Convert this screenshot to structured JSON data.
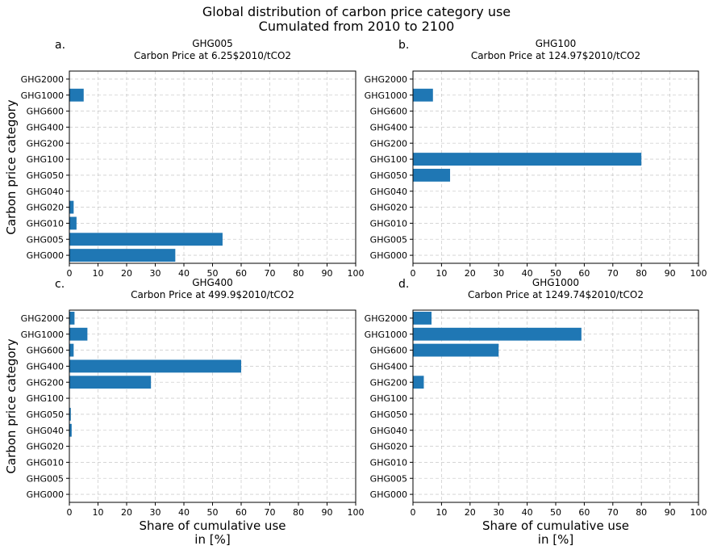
{
  "figure": {
    "title_line1": "Global distribution of carbon price category use",
    "title_line2": "Cumulated from 2010 to 2100"
  },
  "chart_data": [
    {
      "type": "bar",
      "orientation": "horizontal",
      "panel_letter": "a.",
      "title_line1": "GHG005",
      "title_line2": "Carbon Price at 6.25$2010/tCO2",
      "ylabel": "Carbon price category",
      "xlabel_line1": "",
      "xlabel_line2": "",
      "categories": [
        "GHG000",
        "GHG005",
        "GHG010",
        "GHG020",
        "GHG040",
        "GHG050",
        "GHG100",
        "GHG200",
        "GHG400",
        "GHG600",
        "GHG1000",
        "GHG2000"
      ],
      "values": [
        37,
        53.5,
        2.5,
        1.5,
        0,
        0,
        0,
        0,
        0,
        0,
        5,
        0
      ],
      "xlim": [
        0,
        100
      ],
      "xticks": [
        0,
        10,
        20,
        30,
        40,
        50,
        60,
        70,
        80,
        90,
        100
      ],
      "grid": true,
      "bar_color": "#1f77b4"
    },
    {
      "type": "bar",
      "orientation": "horizontal",
      "panel_letter": "b.",
      "title_line1": "GHG100",
      "title_line2": "Carbon Price at 124.97$2010/tCO2",
      "ylabel": "",
      "xlabel_line1": "",
      "xlabel_line2": "",
      "categories": [
        "GHG000",
        "GHG005",
        "GHG010",
        "GHG020",
        "GHG040",
        "GHG050",
        "GHG100",
        "GHG200",
        "GHG400",
        "GHG600",
        "GHG1000",
        "GHG2000"
      ],
      "values": [
        0,
        0,
        0,
        0,
        0,
        13,
        80,
        0,
        0,
        0,
        7,
        0
      ],
      "xlim": [
        0,
        100
      ],
      "xticks": [
        0,
        10,
        20,
        30,
        40,
        50,
        60,
        70,
        80,
        90,
        100
      ],
      "grid": true,
      "bar_color": "#1f77b4"
    },
    {
      "type": "bar",
      "orientation": "horizontal",
      "panel_letter": "c.",
      "title_line1": "GHG400",
      "title_line2": "Carbon Price at 499.9$2010/tCO2",
      "ylabel": "Carbon price category",
      "xlabel_line1": "Share of cumulative use",
      "xlabel_line2": "in [%]",
      "categories": [
        "GHG000",
        "GHG005",
        "GHG010",
        "GHG020",
        "GHG040",
        "GHG050",
        "GHG100",
        "GHG200",
        "GHG400",
        "GHG600",
        "GHG1000",
        "GHG2000"
      ],
      "values": [
        0,
        0,
        0,
        0,
        0.8,
        0.5,
        0,
        28.5,
        60,
        1.5,
        6.3,
        1.8
      ],
      "xlim": [
        0,
        100
      ],
      "xticks": [
        0,
        10,
        20,
        30,
        40,
        50,
        60,
        70,
        80,
        90,
        100
      ],
      "grid": true,
      "bar_color": "#1f77b4"
    },
    {
      "type": "bar",
      "orientation": "horizontal",
      "panel_letter": "d.",
      "title_line1": "GHG1000",
      "title_line2": "Carbon Price at 1249.74$2010/tCO2",
      "ylabel": "",
      "xlabel_line1": "Share of cumulative use",
      "xlabel_line2": "in [%]",
      "categories": [
        "GHG000",
        "GHG005",
        "GHG010",
        "GHG020",
        "GHG040",
        "GHG050",
        "GHG100",
        "GHG200",
        "GHG400",
        "GHG600",
        "GHG1000",
        "GHG2000"
      ],
      "values": [
        0,
        0,
        0,
        0,
        0,
        0,
        0,
        3.8,
        0,
        30,
        59,
        6.5
      ],
      "xlim": [
        0,
        100
      ],
      "xticks": [
        0,
        10,
        20,
        30,
        40,
        50,
        60,
        70,
        80,
        90,
        100
      ],
      "grid": true,
      "bar_color": "#1f77b4"
    }
  ]
}
